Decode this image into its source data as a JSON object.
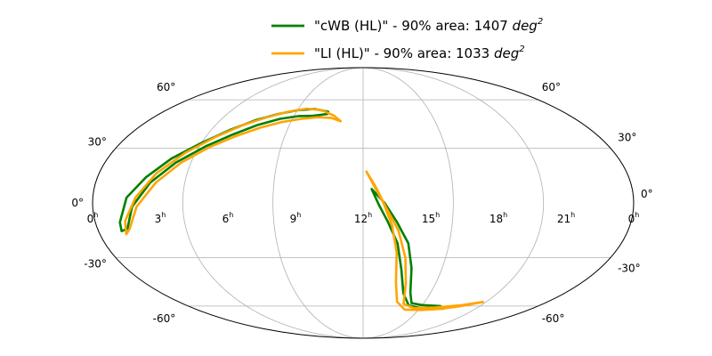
{
  "chart_data": {
    "type": "line",
    "projection": "mollweide",
    "grid": true,
    "legend_position": "top-center",
    "x_ticks": [
      {
        "hours": 0,
        "label": "0",
        "sup": "h"
      },
      {
        "hours": 21,
        "label": "21",
        "sup": "h"
      },
      {
        "hours": 18,
        "label": "18",
        "sup": "h"
      },
      {
        "hours": 15,
        "label": "15",
        "sup": "h"
      },
      {
        "hours": 12,
        "label": "12",
        "sup": "h"
      },
      {
        "hours": 9,
        "label": "9",
        "sup": "h"
      },
      {
        "hours": 6,
        "label": "6",
        "sup": "h"
      },
      {
        "hours": 3,
        "label": "3",
        "sup": "h"
      },
      {
        "hours": 0.0001,
        "label": "0",
        "sup": "h"
      }
    ],
    "y_ticks_left": [
      {
        "deg": 60,
        "label": "60°"
      },
      {
        "deg": 30,
        "label": "30°"
      },
      {
        "deg": 0,
        "label": "0°"
      },
      {
        "deg": -30,
        "label": "-30°"
      },
      {
        "deg": -60,
        "label": "-60°"
      }
    ],
    "y_ticks_right": [
      {
        "deg": 60,
        "label": "60°"
      },
      {
        "deg": 30,
        "label": "30°"
      },
      {
        "deg": 0,
        "label": "0°"
      },
      {
        "deg": -30,
        "label": "-30°"
      },
      {
        "deg": -60,
        "label": "-60°"
      }
    ],
    "series": [
      {
        "name_prefix": "\"cWB (HL)\" - 90% area: 1407 ",
        "name_unit": "deg",
        "name_sup": "2",
        "color": "#008000",
        "contours": [
          [
            [
              9.9,
              52
            ],
            [
              9,
              53.8
            ],
            [
              8,
              53
            ],
            [
              7,
              50.5
            ],
            [
              6,
              46.7
            ],
            [
              5,
              40.8
            ],
            [
              4,
              33
            ],
            [
              3,
              24.2
            ],
            [
              2.2,
              14
            ],
            [
              1.5,
              2.9
            ],
            [
              1.1,
              -10.5
            ],
            [
              1.05,
              -15.3
            ],
            [
              1.35,
              -14
            ],
            [
              1.75,
              -2
            ],
            [
              2.45,
              11
            ],
            [
              3.3,
              22
            ],
            [
              4.3,
              31
            ],
            [
              5.3,
              38
            ],
            [
              6.3,
              43.8
            ],
            [
              7.3,
              47.5
            ],
            [
              8.3,
              49.2
            ],
            [
              9.1,
              49.4
            ],
            [
              9.9,
              50.5
            ],
            [
              9.9,
              52
            ]
          ],
          [
            [
              12.38,
              7.5
            ],
            [
              12.7,
              -1
            ],
            [
              13.1,
              -10
            ],
            [
              13.6,
              -22
            ],
            [
              13.95,
              -37
            ],
            [
              14.4,
              -51.5
            ],
            [
              15.1,
              -59.5
            ],
            [
              16.2,
              -61.8
            ],
            [
              17.7,
              -61.8
            ],
            [
              17.3,
              -60
            ],
            [
              16,
              -59.3
            ],
            [
              15.2,
              -58
            ],
            [
              14.8,
              -51
            ],
            [
              14.45,
              -36
            ],
            [
              14.1,
              -22
            ],
            [
              13.5,
              -10
            ],
            [
              12.95,
              0
            ],
            [
              12.38,
              7.5
            ]
          ]
        ]
      },
      {
        "name_prefix": "\"LI (HL)\" - 90% area: 1033 ",
        "name_unit": "deg",
        "name_sup": "2",
        "color": "#ffa500",
        "contours": [
          [
            [
              10.75,
              46
            ],
            [
              10.3,
              49.5
            ],
            [
              9.5,
              53
            ],
            [
              8.5,
              54
            ],
            [
              7.5,
              52
            ],
            [
              6.5,
              48.5
            ],
            [
              5.5,
              43.7
            ],
            [
              4.5,
              36.5
            ],
            [
              3.5,
              27.3
            ],
            [
              2.6,
              16
            ],
            [
              1.9,
              3
            ],
            [
              1.35,
              -9.8
            ],
            [
              1.2,
              -17
            ],
            [
              1.45,
              -14
            ],
            [
              1.95,
              -2
            ],
            [
              2.7,
              11
            ],
            [
              3.55,
              22
            ],
            [
              4.5,
              30.5
            ],
            [
              5.5,
              37
            ],
            [
              6.5,
              42
            ],
            [
              7.5,
              45.5
            ],
            [
              8.5,
              47.5
            ],
            [
              9.4,
              48.5
            ],
            [
              10.2,
              48
            ],
            [
              10.75,
              46
            ]
          ],
          [
            [
              12.15,
              17
            ],
            [
              12.5,
              9
            ],
            [
              12.9,
              0
            ],
            [
              13.3,
              -12
            ],
            [
              13.6,
              -27
            ],
            [
              13.8,
              -44.5
            ],
            [
              14.2,
              -57
            ],
            [
              15,
              -62.5
            ],
            [
              16.2,
              -62.8
            ],
            [
              17.5,
              -62
            ],
            [
              18.7,
              -60
            ],
            [
              19.8,
              -57.2
            ],
            [
              18.6,
              -59.5
            ],
            [
              17,
              -61
            ],
            [
              15.6,
              -61.5
            ],
            [
              14.7,
              -58.5
            ],
            [
              14.35,
              -45
            ],
            [
              14.05,
              -30
            ],
            [
              13.6,
              -15
            ],
            [
              13,
              -2
            ],
            [
              12.55,
              9
            ],
            [
              12.15,
              17
            ]
          ]
        ]
      }
    ]
  }
}
